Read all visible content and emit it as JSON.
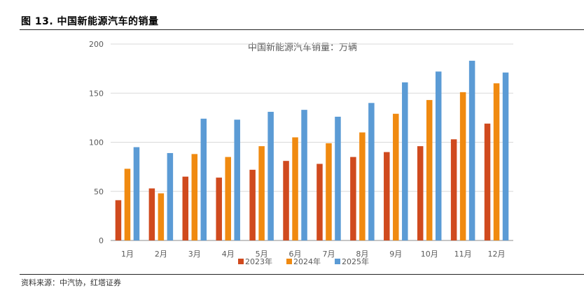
{
  "figure": {
    "label": "图 13.  中国新能源汽车的销量",
    "source": "资料来源：中汽协，红塔证券"
  },
  "colors": {
    "2023": "#D04A1E",
    "2024": "#F08A10",
    "2025": "#5B9BD5",
    "grid": "#D9D9D9",
    "axis": "#8C8C8C"
  },
  "chart_data": {
    "type": "bar",
    "title": "中国新能源汽车销量：万辆",
    "categories": [
      "1月",
      "2月",
      "3月",
      "4月",
      "5月",
      "6月",
      "7月",
      "8月",
      "9月",
      "10月",
      "11月",
      "12月"
    ],
    "series": [
      {
        "name": "2023年",
        "values": [
          41,
          53,
          65,
          64,
          72,
          81,
          78,
          85,
          90,
          96,
          103,
          119
        ]
      },
      {
        "name": "2024年",
        "values": [
          73,
          48,
          88,
          85,
          96,
          105,
          99,
          110,
          129,
          143,
          151,
          160
        ]
      },
      {
        "name": "2025年",
        "values": [
          95,
          89,
          124,
          123,
          131,
          133,
          126,
          140,
          161,
          172,
          183,
          171
        ]
      }
    ],
    "ylim": [
      0,
      200
    ],
    "yticks": [
      0,
      50,
      100,
      150,
      200
    ],
    "grid": true,
    "legend": "bottom"
  }
}
